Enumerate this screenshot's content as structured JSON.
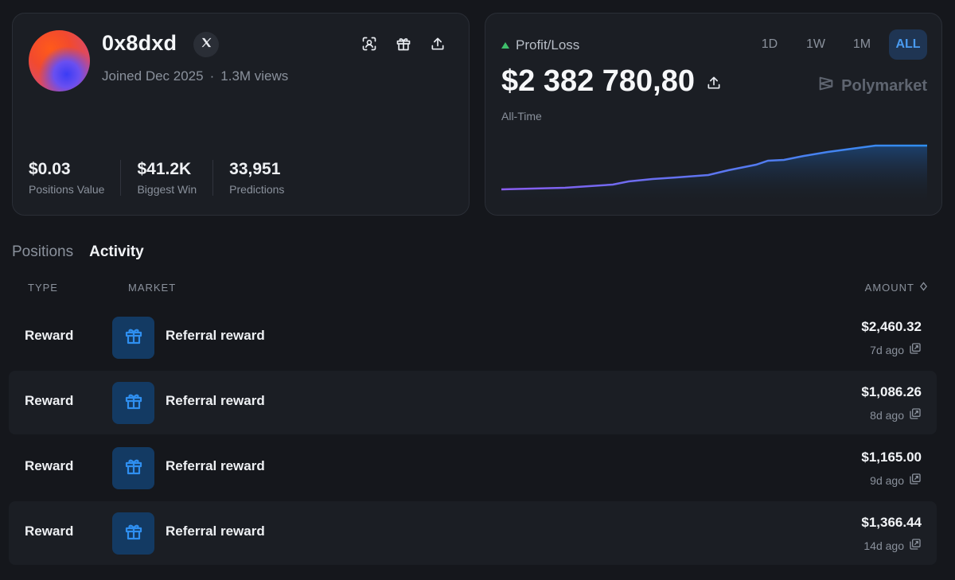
{
  "profile": {
    "username": "0x8dxd",
    "joined": "Joined Dec 2025",
    "separator": "·",
    "views": "1.3M views",
    "stats": [
      {
        "value": "$0.03",
        "label": "Positions Value"
      },
      {
        "value": "$41.2K",
        "label": "Biggest Win"
      },
      {
        "value": "33,951",
        "label": "Predictions"
      }
    ],
    "icons": [
      "x-logo-icon",
      "scan-icon",
      "gift-icon",
      "share-icon"
    ]
  },
  "pnl": {
    "title": "Profit/Loss",
    "value": "$2 382 780,80",
    "period": "All-Time",
    "brand": "Polymarket",
    "ranges": [
      "1D",
      "1W",
      "1M",
      "ALL"
    ],
    "active_range": "ALL",
    "colors": {
      "up": "#3fbf6b",
      "line_start": "#8a5cf0",
      "line_end": "#2f8ff0"
    }
  },
  "tabs": {
    "positions": "Positions",
    "activity": "Activity",
    "active": "Activity"
  },
  "table": {
    "headers": {
      "type": "TYPE",
      "market": "MARKET",
      "amount": "AMOUNT"
    },
    "rows": [
      {
        "type": "Reward",
        "market": "Referral reward",
        "amount": "$2,460.32",
        "time": "7d ago"
      },
      {
        "type": "Reward",
        "market": "Referral reward",
        "amount": "$1,086.26",
        "time": "8d ago"
      },
      {
        "type": "Reward",
        "market": "Referral reward",
        "amount": "$1,165.00",
        "time": "9d ago"
      },
      {
        "type": "Reward",
        "market": "Referral reward",
        "amount": "$1,366.44",
        "time": "14d ago"
      }
    ]
  }
}
